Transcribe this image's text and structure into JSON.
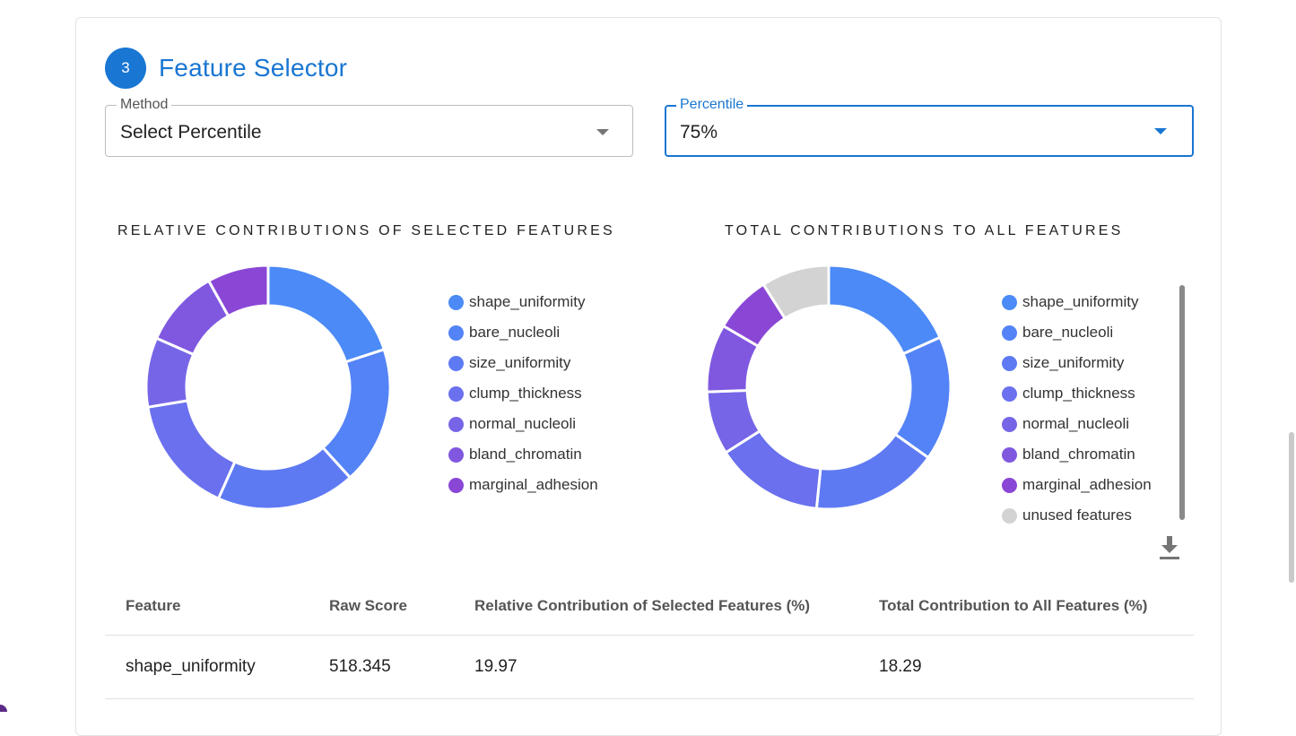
{
  "header": {
    "step": "3",
    "title": "Feature Selector"
  },
  "method_select": {
    "label": "Method",
    "value": "Select Percentile"
  },
  "percentile_select": {
    "label": "Percentile",
    "value": "75%"
  },
  "colors": {
    "accent": "#1976d2",
    "shape_uniformity": "#4b8af7",
    "bare_nucleoli": "#5383f6",
    "size_uniformity": "#5e7af3",
    "clump_thickness": "#6a70ee",
    "normal_nucleoli": "#7666e7",
    "bland_chromatin": "#8058e0",
    "marginal_adhesion": "#8a47d6",
    "unused_features": "#d3d3d3"
  },
  "relative_chart": {
    "title": "RELATIVE CONTRIBUTIONS OF SELECTED FEATURES",
    "type": "pie",
    "legend": [
      "shape_uniformity",
      "bare_nucleoli",
      "size_uniformity",
      "clump_thickness",
      "normal_nucleoli",
      "bland_chromatin",
      "marginal_adhesion"
    ]
  },
  "total_chart": {
    "title": "TOTAL CONTRIBUTIONS TO ALL FEATURES",
    "type": "pie",
    "legend": [
      "shape_uniformity",
      "bare_nucleoli",
      "size_uniformity",
      "clump_thickness",
      "normal_nucleoli",
      "bland_chromatin",
      "marginal_adhesion",
      "unused features"
    ]
  },
  "chart_data": [
    {
      "type": "pie",
      "title": "RELATIVE CONTRIBUTIONS OF SELECTED FEATURES",
      "categories": [
        "shape_uniformity",
        "bare_nucleoli",
        "size_uniformity",
        "clump_thickness",
        "normal_nucleoli",
        "bland_chromatin",
        "marginal_adhesion"
      ],
      "values": [
        19.97,
        18.3,
        18.4,
        15.7,
        9.2,
        10.3,
        8.1
      ],
      "legend_position": "right"
    },
    {
      "type": "pie",
      "title": "TOTAL CONTRIBUTIONS TO ALL FEATURES",
      "categories": [
        "shape_uniformity",
        "bare_nucleoli",
        "size_uniformity",
        "clump_thickness",
        "normal_nucleoli",
        "bland_chromatin",
        "marginal_adhesion",
        "unused features"
      ],
      "values": [
        18.29,
        16.5,
        16.8,
        14.4,
        8.4,
        9.0,
        7.6,
        9.0
      ],
      "legend_position": "right"
    }
  ],
  "table": {
    "headers": [
      "Feature",
      "Raw Score",
      "Relative Contribution of Selected Features (%)",
      "Total Contribution to All Features (%)"
    ],
    "rows": [
      {
        "feature": "shape_uniformity",
        "raw_score": "518.345",
        "relative": "19.97",
        "total": "18.29"
      }
    ]
  }
}
